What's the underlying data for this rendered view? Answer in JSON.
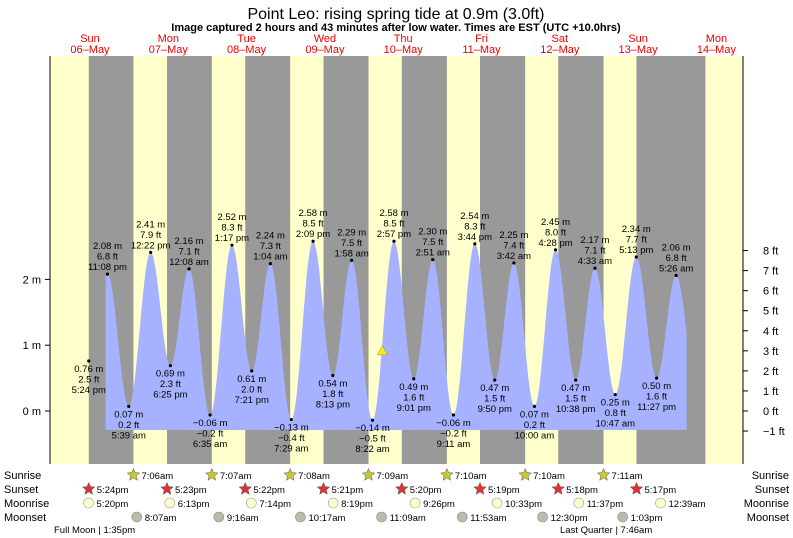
{
  "header": {
    "title": "Point Leo: rising  spring tide at 0.9m (3.0ft)",
    "subtitle": "Image captured 2 hours and 43 minutes after low water. Times are EST (UTC +10.0hrs)"
  },
  "chart_data": {
    "type": "area",
    "days": [
      {
        "name": "Sun",
        "date": "06–May"
      },
      {
        "name": "Mon",
        "date": "07–May"
      },
      {
        "name": "Tue",
        "date": "08–May"
      },
      {
        "name": "Wed",
        "date": "09–May"
      },
      {
        "name": "Thu",
        "date": "10–May"
      },
      {
        "name": "Fri",
        "date": "11–May"
      },
      {
        "name": "Sat",
        "date": "12–May"
      },
      {
        "name": "Sun",
        "date": "13–May"
      },
      {
        "name": "Mon",
        "date": "14–May"
      }
    ],
    "yaxis_left": {
      "ticks": [
        {
          "v": 0,
          "label": "0 m"
        },
        {
          "v": 1,
          "label": "1 m"
        },
        {
          "v": 2,
          "label": "2 m"
        }
      ],
      "ylim": [
        -0.3,
        2.75
      ]
    },
    "yaxis_right": {
      "ticks": [
        "−1 ft",
        "0 ft",
        "1 ft",
        "2 ft",
        "3 ft",
        "4 ft",
        "5 ft",
        "6 ft",
        "7 ft",
        "8 ft"
      ]
    },
    "tides": [
      {
        "type": "low",
        "h": 0.76,
        "m": "0.76 m",
        "ft": "2.5 ft",
        "time": "5:24 pm"
      },
      {
        "type": "high",
        "h": 2.08,
        "m": "2.08 m",
        "ft": "6.8 ft",
        "time": "11:08 pm"
      },
      {
        "type": "low",
        "h": 0.07,
        "m": "0.07 m",
        "ft": "0.2 ft",
        "time": "5:39 am"
      },
      {
        "type": "high",
        "h": 2.41,
        "m": "2.41 m",
        "ft": "7.9 ft",
        "time": "12:22 pm"
      },
      {
        "type": "low",
        "h": 0.69,
        "m": "0.69 m",
        "ft": "2.3 ft",
        "time": "6:25 pm"
      },
      {
        "type": "high",
        "h": 2.16,
        "m": "2.16 m",
        "ft": "7.1 ft",
        "time": "12:08 am"
      },
      {
        "type": "low",
        "h": -0.06,
        "m": "−0.06 m",
        "ft": "−0.2 ft",
        "time": "6:35 am"
      },
      {
        "type": "high",
        "h": 2.52,
        "m": "2.52 m",
        "ft": "8.3 ft",
        "time": "1:17 pm"
      },
      {
        "type": "low",
        "h": 0.61,
        "m": "0.61 m",
        "ft": "2.0 ft",
        "time": "7:21 pm"
      },
      {
        "type": "high",
        "h": 2.24,
        "m": "2.24 m",
        "ft": "7.3 ft",
        "time": "1:04 am"
      },
      {
        "type": "low",
        "h": -0.13,
        "m": "−0.13 m",
        "ft": "−0.4 ft",
        "time": "7:29 am"
      },
      {
        "type": "high",
        "h": 2.58,
        "m": "2.58 m",
        "ft": "8.5 ft",
        "time": "2:09 pm"
      },
      {
        "type": "low",
        "h": 0.54,
        "m": "0.54 m",
        "ft": "1.8 ft",
        "time": "8:13 pm"
      },
      {
        "type": "high",
        "h": 2.29,
        "m": "2.29 m",
        "ft": "7.5 ft",
        "time": "1:58 am"
      },
      {
        "type": "low",
        "h": -0.14,
        "m": "−0.14 m",
        "ft": "−0.5 ft",
        "time": "8:22 am"
      },
      {
        "type": "high",
        "h": 2.58,
        "m": "2.58 m",
        "ft": "8.5 ft",
        "time": "2:57 pm"
      },
      {
        "type": "low",
        "h": 0.49,
        "m": "0.49 m",
        "ft": "1.6 ft",
        "time": "9:01 pm"
      },
      {
        "type": "high",
        "h": 2.3,
        "m": "2.30 m",
        "ft": "7.5 ft",
        "time": "2:51 am"
      },
      {
        "type": "low",
        "h": -0.06,
        "m": "−0.06 m",
        "ft": "−0.2 ft",
        "time": "9:11 am"
      },
      {
        "type": "high",
        "h": 2.54,
        "m": "2.54 m",
        "ft": "8.3 ft",
        "time": "3:44 pm"
      },
      {
        "type": "low",
        "h": 0.47,
        "m": "0.47 m",
        "ft": "1.5 ft",
        "time": "9:50 pm"
      },
      {
        "type": "high",
        "h": 2.25,
        "m": "2.25 m",
        "ft": "7.4 ft",
        "time": "3:42 am"
      },
      {
        "type": "low",
        "h": 0.07,
        "m": "0.07 m",
        "ft": "0.2 ft",
        "time": "10:00 am"
      },
      {
        "type": "high",
        "h": 2.45,
        "m": "2.45 m",
        "ft": "8.0 ft",
        "time": "4:28 pm"
      },
      {
        "type": "low",
        "h": 0.47,
        "m": "0.47 m",
        "ft": "1.5 ft",
        "time": "10:38 pm"
      },
      {
        "type": "high",
        "h": 2.17,
        "m": "2.17 m",
        "ft": "7.1 ft",
        "time": "4:33 am"
      },
      {
        "type": "low",
        "h": 0.25,
        "m": "0.25 m",
        "ft": "0.8 ft",
        "time": "10:47 am"
      },
      {
        "type": "high",
        "h": 2.34,
        "m": "2.34 m",
        "ft": "7.7 ft",
        "time": "5:13 pm"
      },
      {
        "type": "low",
        "h": 0.5,
        "m": "0.50 m",
        "ft": "1.6 ft",
        "time": "11:27 pm"
      },
      {
        "type": "high",
        "h": 2.06,
        "m": "2.06 m",
        "ft": "6.8 ft",
        "time": "5:26 am"
      }
    ],
    "current": {
      "h": 0.9
    },
    "rows": {
      "sunrise": {
        "label": "Sunrise",
        "times": [
          "7:06am",
          "7:07am",
          "7:08am",
          "7:09am",
          "7:10am",
          "7:10am",
          "7:11am"
        ]
      },
      "sunset": {
        "label": "Sunset",
        "times": [
          "5:24pm",
          "5:23pm",
          "5:22pm",
          "5:21pm",
          "5:20pm",
          "5:19pm",
          "5:18pm",
          "5:17pm"
        ]
      },
      "moonrise": {
        "label": "Moonrise",
        "times": [
          "5:20pm",
          "6:13pm",
          "7:14pm",
          "8:19pm",
          "9:26pm",
          "10:33pm",
          "11:37pm",
          "12:39am"
        ]
      },
      "moonset": {
        "label": "Moonset",
        "times": [
          "8:07am",
          "9:16am",
          "10:17am",
          "11:09am",
          "11:53am",
          "12:30pm",
          "1:03pm"
        ]
      }
    },
    "moon_phases": {
      "full": "Full Moon | 1:35pm",
      "last": "Last Quarter | 7:46am"
    },
    "colors": {
      "water": "#a6b2ff",
      "day": "#ffffcc",
      "night": "#999999",
      "sunrise_star": "#c8c830",
      "sunset_star": "#dd3333",
      "moon": "#ffffcc",
      "moonset": "#bbbbaa",
      "marker": "#ffee00"
    }
  }
}
